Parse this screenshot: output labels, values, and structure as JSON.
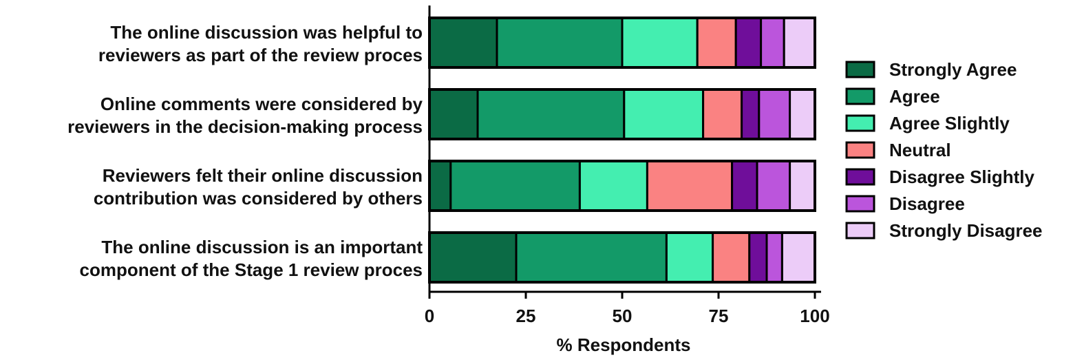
{
  "chart_data": {
    "type": "bar",
    "orientation": "horizontal",
    "stacked": true,
    "title": "",
    "xlabel": "% Respondents",
    "ylabel": "",
    "xlim": [
      0,
      100
    ],
    "xticks": [
      "0",
      "25",
      "50",
      "75",
      "100"
    ],
    "xtick_values": [
      0,
      25,
      50,
      75,
      100
    ],
    "grid": false,
    "legend_position": "right",
    "categories": [
      [
        "The online discussion was helpful to",
        "reviewers as part of the review proces"
      ],
      [
        "Online comments were considered by",
        "reviewers in the decision-making process"
      ],
      [
        "Reviewers felt their online discussion",
        "contribution was considered by others"
      ],
      [
        "The online discussion is an important",
        "component of the Stage 1 review proces"
      ]
    ],
    "series": [
      {
        "name": "Strongly Agree",
        "color": "#0b6b45",
        "values": [
          17.5,
          12.5,
          5.5,
          22.5
        ]
      },
      {
        "name": "Agree",
        "color": "#139a68",
        "values": [
          32.5,
          38.0,
          33.5,
          39.0
        ]
      },
      {
        "name": "Agree Slightly",
        "color": "#44eeb0",
        "values": [
          19.5,
          20.5,
          17.5,
          12.0
        ]
      },
      {
        "name": "Neutral",
        "color": "#fa8282",
        "values": [
          10.0,
          10.0,
          22.0,
          9.5
        ]
      },
      {
        "name": "Disagree Slightly",
        "color": "#6f0e9a",
        "values": [
          6.5,
          4.5,
          6.5,
          4.5
        ]
      },
      {
        "name": "Disagree",
        "color": "#bb55dc",
        "values": [
          6.0,
          8.0,
          8.5,
          4.0
        ]
      },
      {
        "name": "Strongly Disagree",
        "color": "#ecccf8",
        "values": [
          8.0,
          6.5,
          6.5,
          8.5
        ]
      }
    ]
  }
}
